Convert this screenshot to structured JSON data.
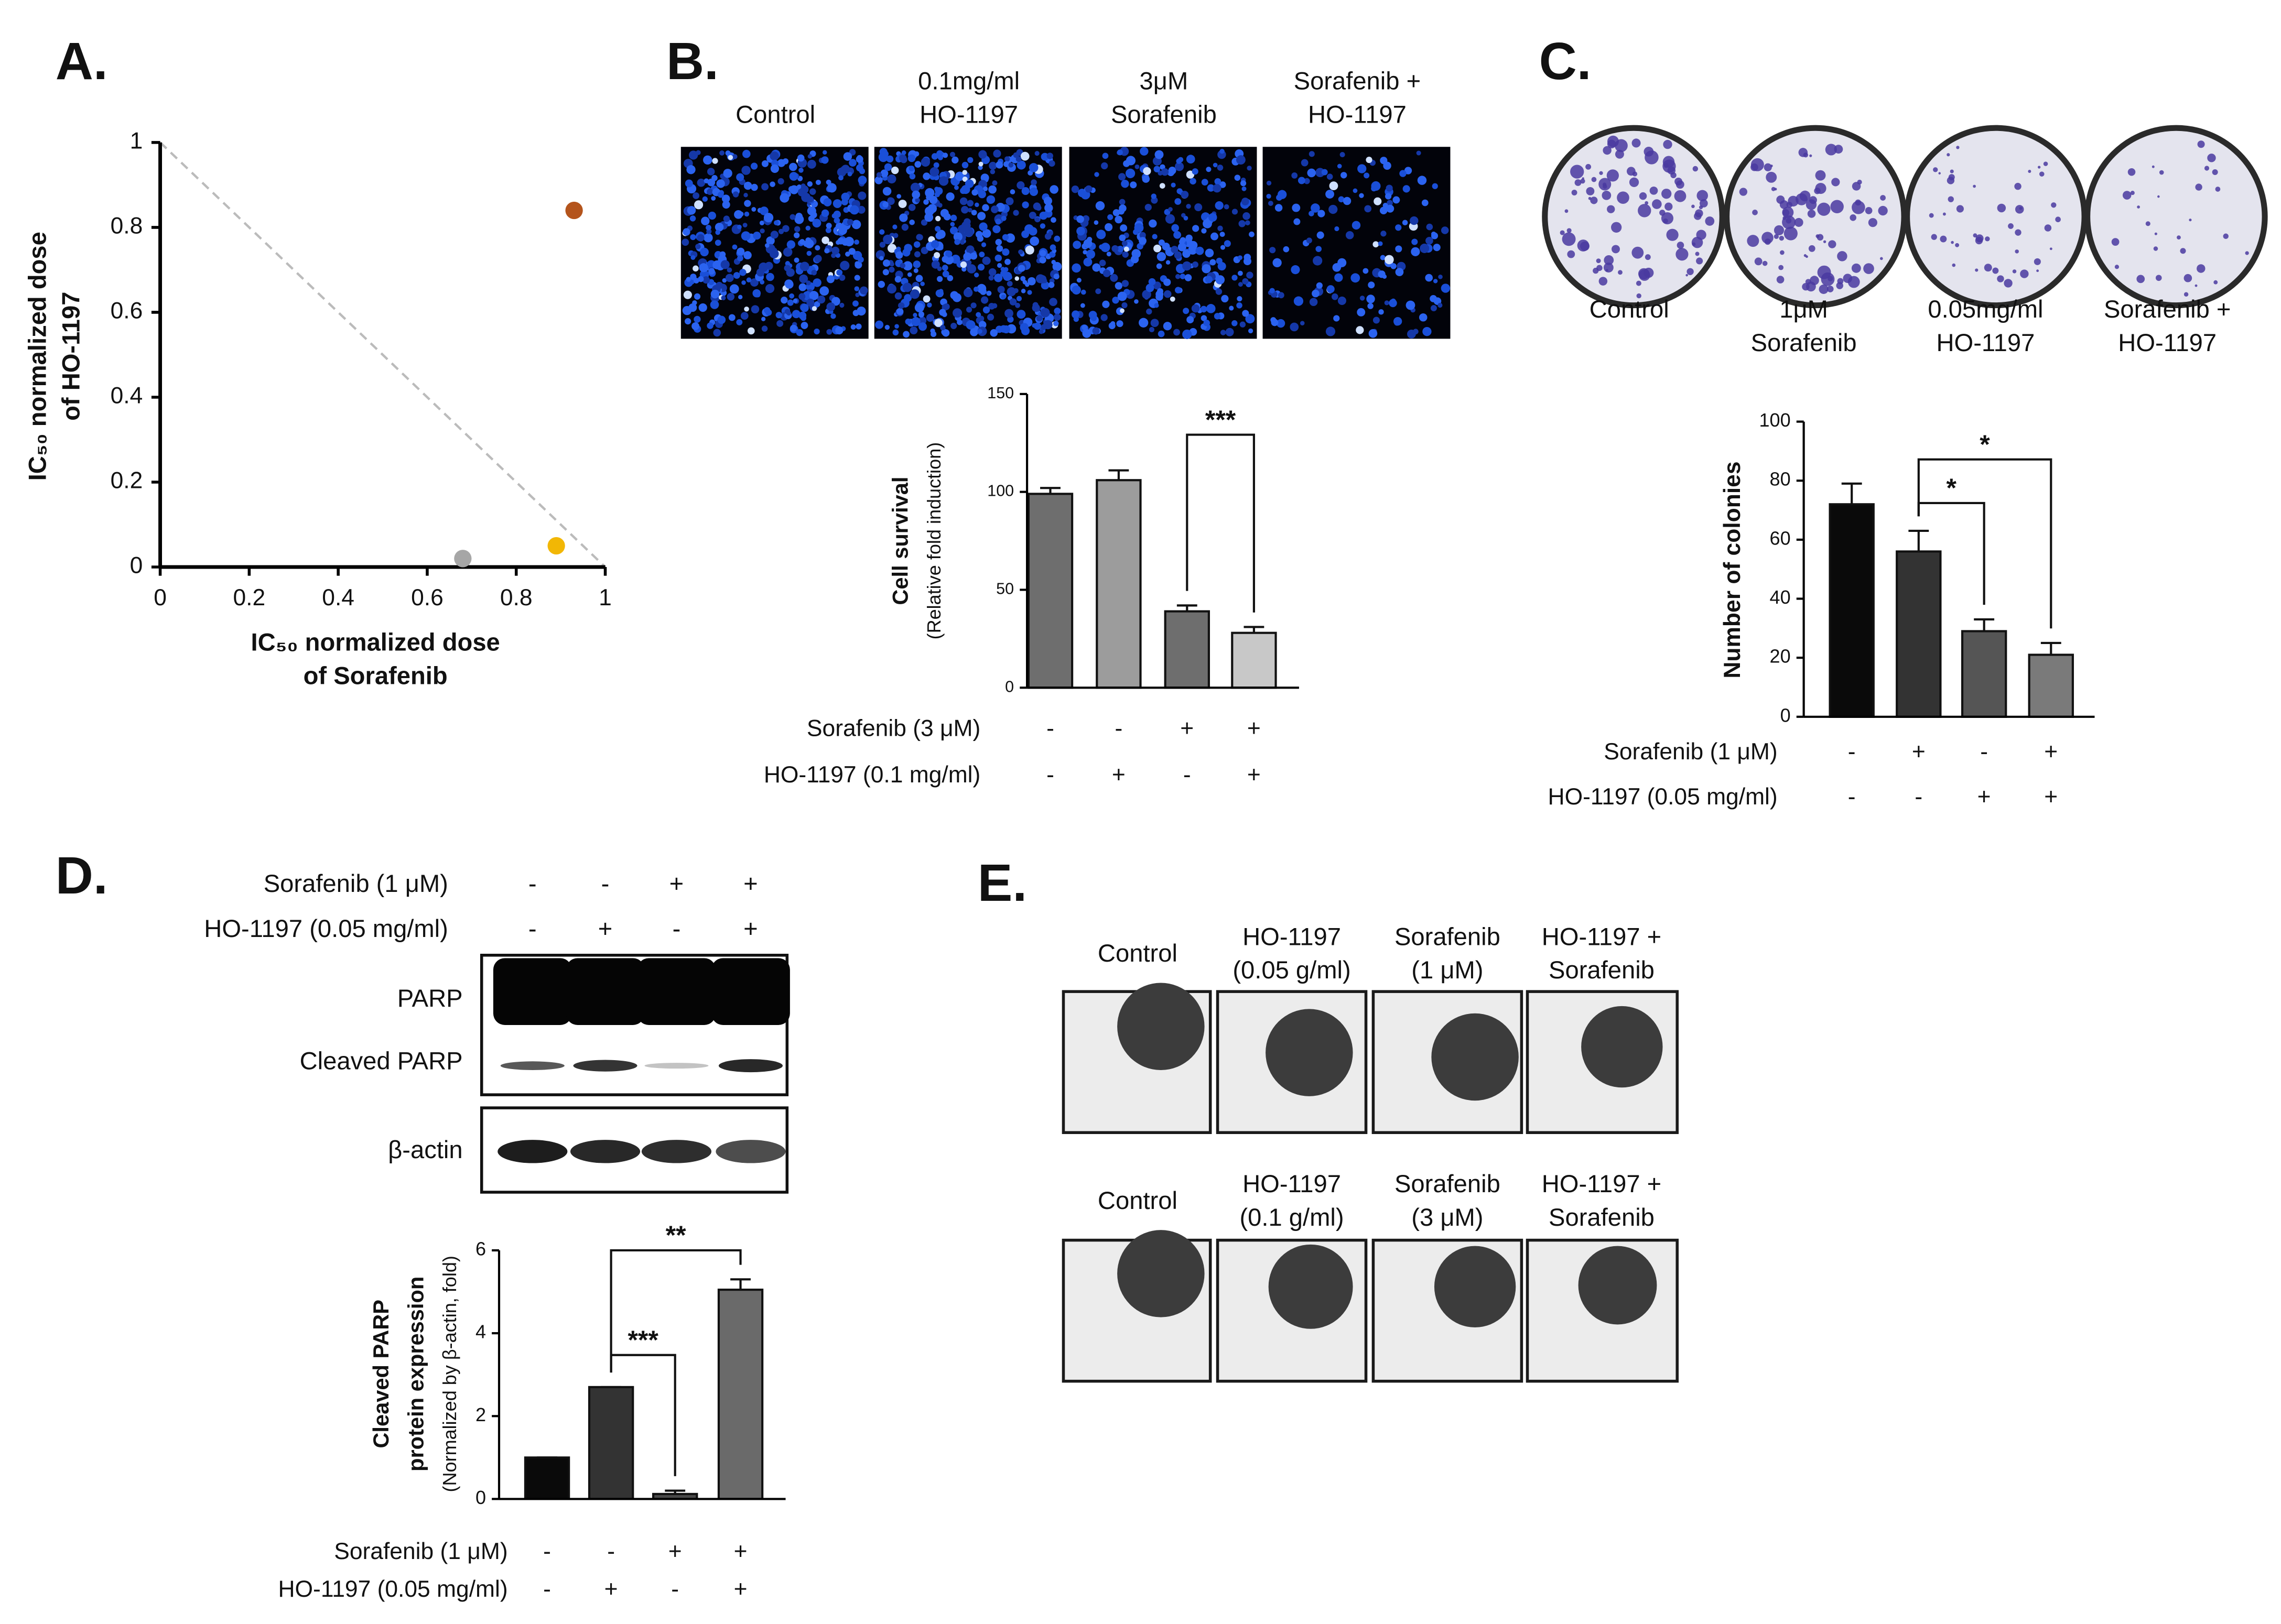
{
  "panels": [
    "A.",
    "B.",
    "C.",
    "D.",
    "E."
  ],
  "panel_b_images": [
    [
      "Control"
    ],
    [
      "0.1mg/ml",
      "HO-1197"
    ],
    [
      "3μM",
      "Sorafenib"
    ],
    [
      "Sorafenib +",
      "HO-1197"
    ]
  ],
  "panel_c_images": [
    [
      "Control"
    ],
    [
      "1μM",
      "Sorafenib"
    ],
    [
      "0.05mg/ml",
      "HO-1197"
    ],
    [
      "Sorafenib +",
      "HO-1197"
    ]
  ],
  "panel_d_blot": {
    "treatments": [
      {
        "label": "Sorafenib (1 μM)",
        "signs": [
          "-",
          "-",
          "+",
          "+"
        ]
      },
      {
        "label": "HO-1197 (0.05 mg/ml)",
        "signs": [
          "-",
          "+",
          "-",
          "+"
        ]
      }
    ],
    "bands": [
      "PARP",
      "Cleaved PARP",
      "β-actin"
    ]
  },
  "panel_e": [
    [
      [
        "Control"
      ],
      [
        "HO-1197",
        "(0.05 g/ml)"
      ],
      [
        "Sorafenib",
        "(1 μM)"
      ],
      [
        "HO-1197 +",
        "Sorafenib"
      ]
    ],
    [
      [
        "Control"
      ],
      [
        "HO-1197",
        "(0.1 g/ml)"
      ],
      [
        "Sorafenib",
        "(3 μM)"
      ],
      [
        "HO-1197 +",
        "Sorafenib"
      ]
    ]
  ],
  "chart_data": [
    {
      "type": "scatter",
      "xlabel": [
        "IC₅₀ normalized dose",
        "of Sorafenib"
      ],
      "ylabel": [
        "IC₅₀ normalized dose",
        "of HO-1197"
      ],
      "x": [
        0.68,
        0.89,
        0.93
      ],
      "values": [
        0.02,
        0.05,
        0.84
      ],
      "colors": [
        "#a6a6a6",
        "#f2b705",
        "#b4541c"
      ],
      "xlim": [
        0,
        1
      ],
      "ylim": [
        0,
        1
      ],
      "xticks": [
        0,
        0.2,
        0.4,
        0.6,
        0.8,
        1
      ],
      "yticks": [
        0,
        0.2,
        0.4,
        0.6,
        0.8,
        1
      ]
    },
    {
      "type": "bar",
      "ylabel": [
        "Cell survival",
        "(Relative fold induction)"
      ],
      "values": [
        99,
        106,
        39,
        28
      ],
      "errors": [
        3,
        5,
        3,
        3
      ],
      "colors": [
        "#6e6e6e",
        "#9c9c9c",
        "#6e6e6e",
        "#c8c8c8"
      ],
      "ylim": [
        0,
        150
      ],
      "yticks": [
        0,
        50,
        100,
        150
      ],
      "treatments": [
        {
          "label": "Sorafenib (3 μM)",
          "signs": [
            "-",
            "-",
            "+",
            "+"
          ]
        },
        {
          "label": "HO-1197 (0.1 mg/ml)",
          "signs": [
            "-",
            "+",
            "-",
            "+"
          ]
        }
      ],
      "significance": [
        {
          "pair": [
            2,
            3
          ],
          "label": "***"
        }
      ]
    },
    {
      "type": "bar",
      "ylabel": [
        "Number of colonies"
      ],
      "values": [
        72,
        56,
        29,
        21
      ],
      "errors": [
        7,
        7,
        4,
        4
      ],
      "colors": [
        "#0a0a0a",
        "#333333",
        "#555555",
        "#7a7a7a"
      ],
      "ylim": [
        0,
        100
      ],
      "yticks": [
        0,
        20,
        40,
        60,
        80,
        100
      ],
      "treatments": [
        {
          "label": "Sorafenib (1 μM)",
          "signs": [
            "-",
            "+",
            "-",
            "+"
          ]
        },
        {
          "label": "HO-1197 (0.05 mg/ml)",
          "signs": [
            "-",
            "-",
            "+",
            "+"
          ]
        }
      ],
      "significance": [
        {
          "pair": [
            1,
            2
          ],
          "label": "*"
        },
        {
          "pair": [
            1,
            3
          ],
          "label": "*"
        }
      ]
    },
    {
      "type": "bar",
      "ylabel": [
        "Cleaved  PARP",
        "protein expression",
        "(Normalized by β-actin, fold)"
      ],
      "values": [
        1,
        2.7,
        0.12,
        5.05
      ],
      "errors": [
        0,
        0,
        0.08,
        0.25
      ],
      "colors": [
        "#0a0a0a",
        "#333333",
        "#4a4a4a",
        "#6a6a6a"
      ],
      "ylim": [
        0,
        6
      ],
      "yticks": [
        0,
        2,
        4,
        6
      ],
      "treatments": [
        {
          "label": "Sorafenib (1 μM)",
          "signs": [
            "-",
            "-",
            "+",
            "+"
          ]
        },
        {
          "label": "HO-1197 (0.05 mg/ml)",
          "signs": [
            "-",
            "+",
            "-",
            "+"
          ]
        }
      ],
      "significance": [
        {
          "pair": [
            1,
            2
          ],
          "label": "***"
        },
        {
          "pair": [
            1,
            3
          ],
          "label": "**"
        }
      ]
    }
  ]
}
